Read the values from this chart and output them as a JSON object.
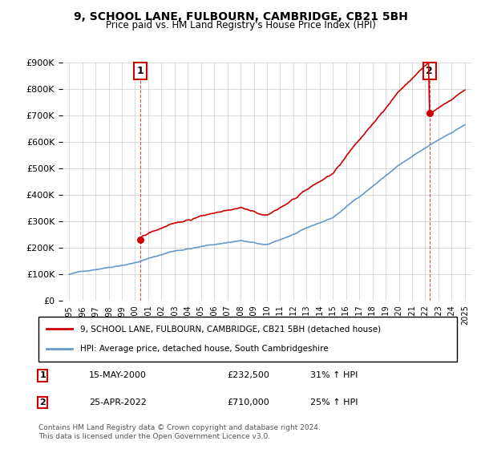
{
  "title": "9, SCHOOL LANE, FULBOURN, CAMBRIDGE, CB21 5BH",
  "subtitle": "Price paid vs. HM Land Registry's House Price Index (HPI)",
  "legend_line1": "9, SCHOOL LANE, FULBOURN, CAMBRIDGE, CB21 5BH (detached house)",
  "legend_line2": "HPI: Average price, detached house, South Cambridgeshire",
  "footnote": "Contains HM Land Registry data © Crown copyright and database right 2024.\nThis data is licensed under the Open Government Licence v3.0.",
  "sale1_label": "1",
  "sale1_date": "15-MAY-2000",
  "sale1_price": "£232,500",
  "sale1_hpi": "31% ↑ HPI",
  "sale1_year": 2000.38,
  "sale1_value": 232500,
  "sale2_label": "2",
  "sale2_date": "25-APR-2022",
  "sale2_price": "£710,000",
  "sale2_hpi": "25% ↑ HPI",
  "sale2_year": 2022.32,
  "sale2_value": 710000,
  "red_color": "#cc0000",
  "blue_color": "#6699cc",
  "dashed_red": "#cc0000",
  "background_color": "#ffffff",
  "grid_color": "#cccccc",
  "ylim": [
    0,
    900000
  ],
  "xlim_start": 1995,
  "xlim_end": 2025.5,
  "ytick_values": [
    0,
    100000,
    200000,
    300000,
    400000,
    500000,
    600000,
    700000,
    800000,
    900000
  ],
  "xtick_years": [
    1995,
    1996,
    1997,
    1998,
    1999,
    2000,
    2001,
    2002,
    2003,
    2004,
    2005,
    2006,
    2007,
    2008,
    2009,
    2010,
    2011,
    2012,
    2013,
    2014,
    2015,
    2016,
    2017,
    2018,
    2019,
    2020,
    2021,
    2022,
    2023,
    2024,
    2025
  ]
}
